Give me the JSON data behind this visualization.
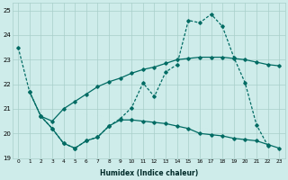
{
  "xlabel": "Humidex (Indice chaleur)",
  "xlim": [
    -0.5,
    23.5
  ],
  "ylim": [
    19,
    25.3
  ],
  "yticks": [
    19,
    20,
    21,
    22,
    23,
    24,
    25
  ],
  "xticks": [
    0,
    1,
    2,
    3,
    4,
    5,
    6,
    7,
    8,
    9,
    10,
    11,
    12,
    13,
    14,
    15,
    16,
    17,
    18,
    19,
    20,
    21,
    22,
    23
  ],
  "bg_color": "#ceecea",
  "grid_color": "#a8ceca",
  "line_color": "#006b63",
  "s1_x": [
    0,
    1,
    2,
    3,
    4,
    5,
    6,
    7,
    8,
    9,
    10,
    11,
    12,
    13,
    14,
    15,
    16,
    17,
    18,
    19,
    20,
    21,
    22,
    23
  ],
  "s1_y": [
    23.5,
    21.7,
    20.7,
    20.2,
    19.6,
    19.4,
    19.7,
    19.85,
    20.3,
    20.6,
    21.05,
    22.05,
    21.5,
    22.5,
    22.8,
    24.6,
    24.5,
    24.85,
    24.35,
    23.1,
    22.05,
    20.35,
    19.5,
    null
  ],
  "s1_ls": "--",
  "s2_x": [
    2,
    3,
    4,
    5,
    6,
    7,
    8,
    9,
    10,
    11,
    12,
    13,
    14,
    15,
    16,
    17,
    18,
    19,
    20,
    21,
    22,
    23
  ],
  "s2_y": [
    20.7,
    20.5,
    21.0,
    21.3,
    21.6,
    21.9,
    22.1,
    22.25,
    22.45,
    22.6,
    22.7,
    22.85,
    23.0,
    23.05,
    23.1,
    23.1,
    23.1,
    23.05,
    23.0,
    22.9,
    22.8,
    22.75
  ],
  "s2_ls": "-",
  "s3_x": [
    1,
    2,
    3,
    4,
    5,
    6,
    7,
    8,
    9,
    10,
    11,
    12,
    13,
    14,
    15,
    16,
    17,
    18,
    19,
    20,
    21,
    22,
    23
  ],
  "s3_y": [
    21.7,
    20.7,
    20.2,
    19.6,
    19.4,
    19.7,
    19.85,
    20.3,
    20.55,
    20.55,
    20.5,
    20.45,
    20.4,
    20.3,
    20.2,
    20.0,
    19.95,
    19.9,
    19.8,
    19.75,
    19.7,
    19.55,
    19.4
  ],
  "s3_ls": "-"
}
